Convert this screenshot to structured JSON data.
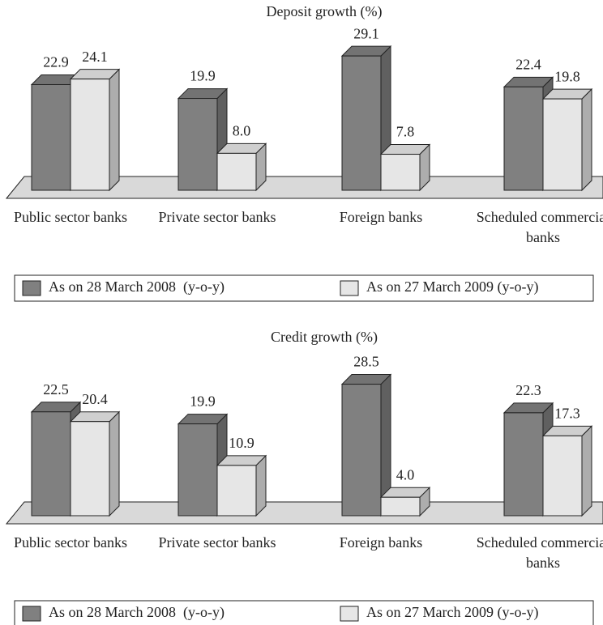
{
  "chart_data": [
    {
      "type": "bar3d",
      "title": "Deposit growth (%)",
      "categories": [
        "Public sector banks",
        "Private sector banks",
        "Foreign banks",
        "Scheduled commercial banks"
      ],
      "series": [
        {
          "name": "As on 28 March 2008  (y-o-y)",
          "color": "#808080",
          "values": [
            22.9,
            19.9,
            29.1,
            22.4
          ],
          "value_labels": [
            "22.9",
            "19.9",
            "29.1",
            "22.4"
          ]
        },
        {
          "name": "As on 27 March 2009 (y-o-y)",
          "color": "#e6e6e6",
          "values": [
            24.1,
            8.0,
            7.8,
            19.8
          ],
          "value_labels": [
            "24.1",
            "8.0",
            "7.8",
            "19.8"
          ]
        }
      ]
    },
    {
      "type": "bar3d",
      "title": "Credit growth (%)",
      "categories": [
        "Public sector banks",
        "Private sector banks",
        "Foreign banks",
        "Scheduled commercial banks"
      ],
      "series": [
        {
          "name": "As on 28 March 2008  (y-o-y)",
          "color": "#808080",
          "values": [
            22.5,
            19.9,
            28.5,
            22.3
          ],
          "value_labels": [
            "22.5",
            "19.9",
            "28.5",
            "22.3"
          ]
        },
        {
          "name": "As on 27 March 2009 (y-o-y)",
          "color": "#e6e6e6",
          "values": [
            20.4,
            10.9,
            4.0,
            17.3
          ],
          "value_labels": [
            "20.4",
            "10.9",
            "4.0",
            "17.3"
          ]
        }
      ]
    }
  ]
}
